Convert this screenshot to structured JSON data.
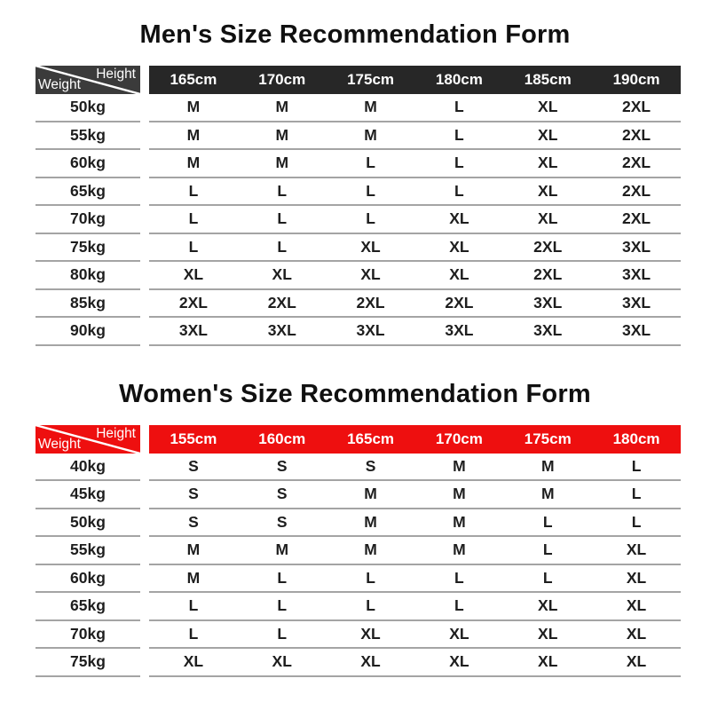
{
  "page_background": "#ffffff",
  "corner_labels": {
    "top": "Height",
    "bottom": "Weight"
  },
  "colors": {
    "separator": "#a4a4a4",
    "body_text": "#1e1e1e",
    "header_text": "#ffffff",
    "men_header_bg": "#272727",
    "men_corner_bg": "#3b3b3b",
    "women_header_bg": "#ee0f0f",
    "women_corner_bg": "#ee0f0f"
  },
  "chart_data": [
    {
      "type": "table",
      "title": "Men's Size Recommendation Form",
      "header_bg": "#272727",
      "corner_bg": "#3b3b3b",
      "heights": [
        "165cm",
        "170cm",
        "175cm",
        "180cm",
        "185cm",
        "190cm"
      ],
      "rows": [
        {
          "weight": "50kg",
          "sizes": [
            "M",
            "M",
            "M",
            "L",
            "XL",
            "2XL"
          ]
        },
        {
          "weight": "55kg",
          "sizes": [
            "M",
            "M",
            "M",
            "L",
            "XL",
            "2XL"
          ]
        },
        {
          "weight": "60kg",
          "sizes": [
            "M",
            "M",
            "L",
            "L",
            "XL",
            "2XL"
          ]
        },
        {
          "weight": "65kg",
          "sizes": [
            "L",
            "L",
            "L",
            "L",
            "XL",
            "2XL"
          ]
        },
        {
          "weight": "70kg",
          "sizes": [
            "L",
            "L",
            "L",
            "XL",
            "XL",
            "2XL"
          ]
        },
        {
          "weight": "75kg",
          "sizes": [
            "L",
            "L",
            "XL",
            "XL",
            "2XL",
            "3XL"
          ]
        },
        {
          "weight": "80kg",
          "sizes": [
            "XL",
            "XL",
            "XL",
            "XL",
            "2XL",
            "3XL"
          ]
        },
        {
          "weight": "85kg",
          "sizes": [
            "2XL",
            "2XL",
            "2XL",
            "2XL",
            "3XL",
            "3XL"
          ]
        },
        {
          "weight": "90kg",
          "sizes": [
            "3XL",
            "3XL",
            "3XL",
            "3XL",
            "3XL",
            "3XL"
          ]
        }
      ]
    },
    {
      "type": "table",
      "title": "Women's Size Recommendation Form",
      "header_bg": "#ee0f0f",
      "corner_bg": "#ee0f0f",
      "heights": [
        "155cm",
        "160cm",
        "165cm",
        "170cm",
        "175cm",
        "180cm"
      ],
      "rows": [
        {
          "weight": "40kg",
          "sizes": [
            "S",
            "S",
            "S",
            "M",
            "M",
            "L"
          ]
        },
        {
          "weight": "45kg",
          "sizes": [
            "S",
            "S",
            "M",
            "M",
            "M",
            "L"
          ]
        },
        {
          "weight": "50kg",
          "sizes": [
            "S",
            "S",
            "M",
            "M",
            "L",
            "L"
          ]
        },
        {
          "weight": "55kg",
          "sizes": [
            "M",
            "M",
            "M",
            "M",
            "L",
            "XL"
          ]
        },
        {
          "weight": "60kg",
          "sizes": [
            "M",
            "L",
            "L",
            "L",
            "L",
            "XL"
          ]
        },
        {
          "weight": "65kg",
          "sizes": [
            "L",
            "L",
            "L",
            "L",
            "XL",
            "XL"
          ]
        },
        {
          "weight": "70kg",
          "sizes": [
            "L",
            "L",
            "XL",
            "XL",
            "XL",
            "XL"
          ]
        },
        {
          "weight": "75kg",
          "sizes": [
            "XL",
            "XL",
            "XL",
            "XL",
            "XL",
            "XL"
          ]
        }
      ]
    }
  ]
}
